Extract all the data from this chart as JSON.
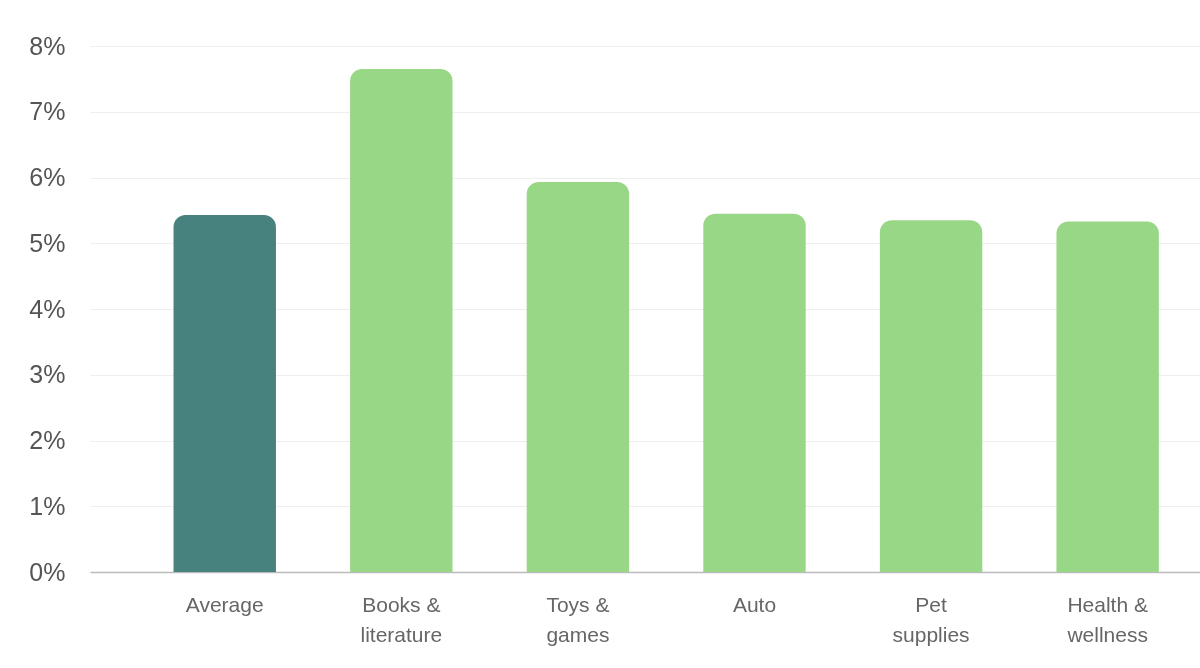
{
  "chart_data": {
    "type": "bar",
    "categories": [
      "Average",
      "Books & literature",
      "Toys & games",
      "Auto",
      "Pet supplies",
      "Health & wellness"
    ],
    "values": [
      5.43,
      7.65,
      5.93,
      5.45,
      5.35,
      5.33
    ],
    "colors": [
      "#47827e",
      "#98d786",
      "#98d786",
      "#98d786",
      "#98d786",
      "#98d786"
    ],
    "ylim": [
      0,
      8
    ],
    "yticks": [
      {
        "value": 0,
        "label": "0%"
      },
      {
        "value": 1,
        "label": "1%"
      },
      {
        "value": 2,
        "label": "2%"
      },
      {
        "value": 3,
        "label": "3%"
      },
      {
        "value": 4,
        "label": "4%"
      },
      {
        "value": 5,
        "label": "5%"
      },
      {
        "value": 6,
        "label": "6%"
      },
      {
        "value": 7,
        "label": "7%"
      },
      {
        "value": 8,
        "label": "8%"
      }
    ],
    "grid": "y"
  }
}
